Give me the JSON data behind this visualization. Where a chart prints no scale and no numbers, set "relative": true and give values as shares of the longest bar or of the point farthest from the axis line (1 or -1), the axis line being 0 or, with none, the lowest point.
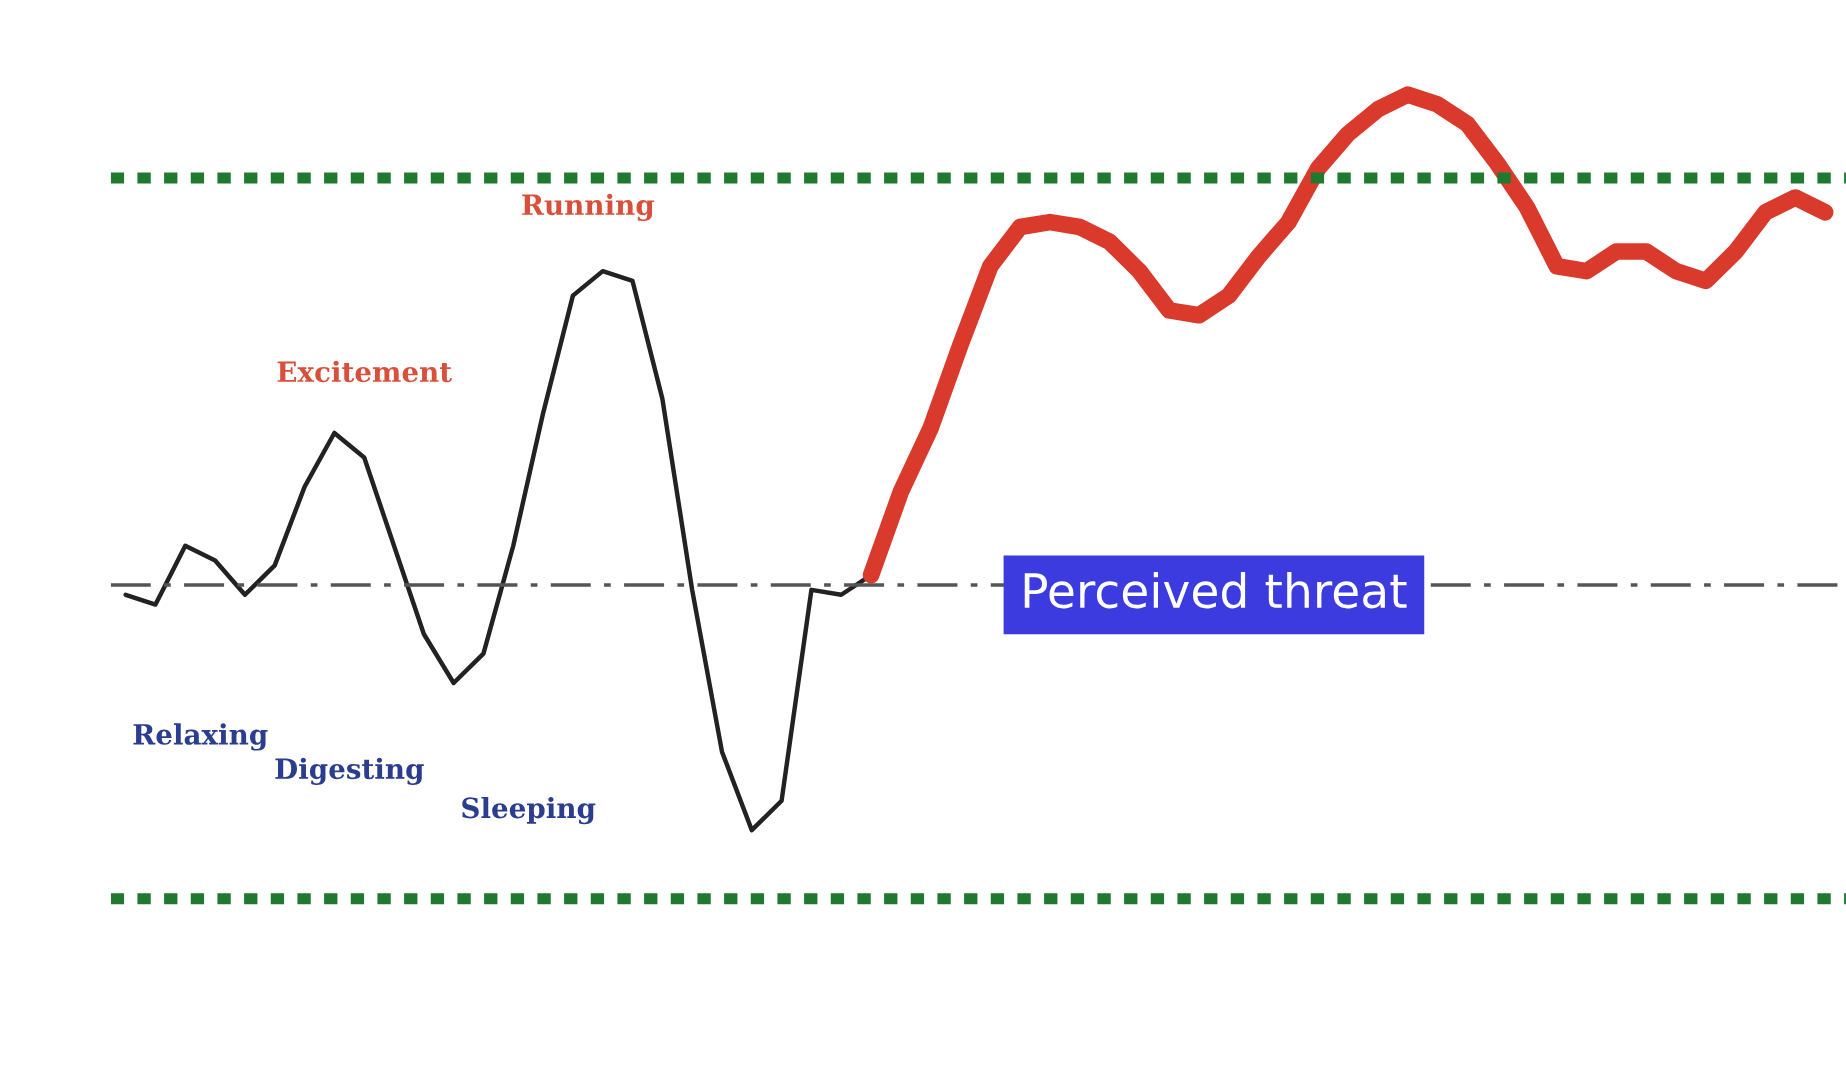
{
  "chart_data": {
    "type": "line",
    "relative": true,
    "categories": [
      null,
      null,
      null,
      null,
      null,
      null,
      null,
      null,
      null,
      null,
      null,
      null,
      null,
      null,
      null,
      null,
      null,
      null,
      null,
      null,
      null,
      null,
      null,
      null,
      null,
      null,
      null,
      null,
      null,
      null,
      null,
      null,
      null,
      null,
      null,
      null,
      null,
      null,
      null,
      null,
      null,
      null,
      null,
      null,
      null,
      null,
      null,
      null,
      null,
      null,
      null,
      null,
      null,
      null,
      null,
      null,
      null,
      null
    ],
    "series": [
      {
        "color": "#222222",
        "values": [
          -0.02,
          -0.04,
          0.08,
          0.05,
          -0.02,
          0.04,
          0.2,
          0.31,
          0.26,
          0.08,
          -0.1,
          -0.2,
          -0.14,
          0.08,
          0.35,
          0.59,
          0.64,
          0.62,
          0.38,
          -0.01,
          -0.34,
          -0.5,
          -0.44,
          -0.01,
          -0.02,
          0.02,
          null,
          null,
          null,
          null,
          null,
          null,
          null,
          null,
          null,
          null,
          null,
          null,
          null,
          null,
          null,
          null,
          null,
          null,
          null,
          null,
          null,
          null,
          null,
          null,
          null,
          null,
          null,
          null,
          null,
          null,
          null,
          null
        ]
      },
      {
        "color": "#d93a2b",
        "values": [
          null,
          null,
          null,
          null,
          null,
          null,
          null,
          null,
          null,
          null,
          null,
          null,
          null,
          null,
          null,
          null,
          null,
          null,
          null,
          null,
          null,
          null,
          null,
          null,
          null,
          0.02,
          0.19,
          0.32,
          0.49,
          0.65,
          0.73,
          0.74,
          0.73,
          0.7,
          0.64,
          0.56,
          0.55,
          0.59,
          0.67,
          0.74,
          0.85,
          0.92,
          0.97,
          1.0,
          0.98,
          0.94,
          0.86,
          0.77,
          0.65,
          0.64,
          0.68,
          0.68,
          0.64,
          0.62,
          0.68,
          0.76,
          0.79,
          0.76
        ]
      }
    ],
    "ref_lines": [
      {
        "axis": "y",
        "value": 0.83,
        "color": "#1f7a30",
        "line_style": "dotted"
      },
      {
        "axis": "y",
        "value": 0,
        "color": "#555555",
        "line_style": "dashed"
      },
      {
        "axis": "y",
        "value": -0.64,
        "color": "#1f7a30",
        "line_style": "dotted"
      }
    ],
    "annotations": [
      "Running",
      "Excitement",
      "Relaxing",
      "Digesting",
      "Sleeping",
      "Perceived threat"
    ],
    "legend": false
  }
}
